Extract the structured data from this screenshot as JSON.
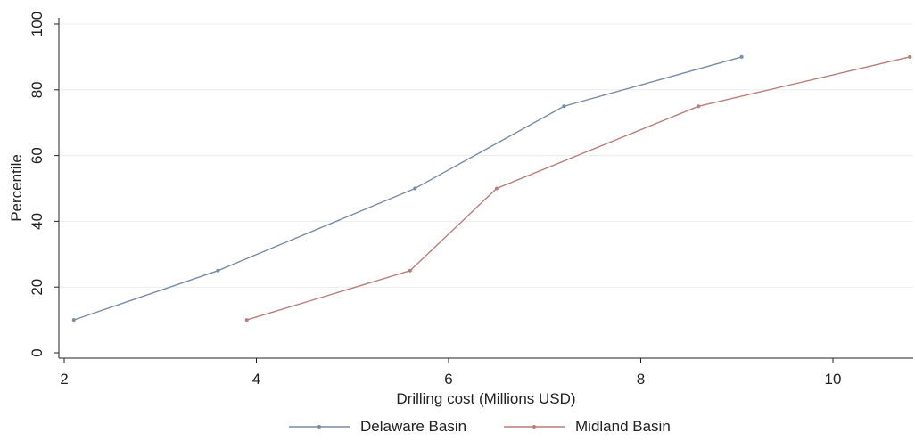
{
  "chart_data": {
    "type": "line",
    "title": "",
    "xlabel": "Drilling cost (Millions USD)",
    "ylabel": "Percentile",
    "xlim": [
      2,
      10.8
    ],
    "ylim": [
      0,
      100
    ],
    "x_ticks": [
      2,
      4,
      6,
      8,
      10
    ],
    "y_ticks": [
      0,
      20,
      40,
      60,
      80,
      100
    ],
    "grid": "horizontal",
    "legend_position": "bottom-center",
    "series": [
      {
        "name": "Delaware Basin",
        "color": "#7a8ba8",
        "points": [
          {
            "x": 2.1,
            "y": 10
          },
          {
            "x": 3.6,
            "y": 25
          },
          {
            "x": 5.65,
            "y": 50
          },
          {
            "x": 7.2,
            "y": 75
          },
          {
            "x": 9.05,
            "y": 90
          }
        ]
      },
      {
        "name": "Midland Basin",
        "color": "#b87f7a",
        "points": [
          {
            "x": 3.9,
            "y": 10
          },
          {
            "x": 5.6,
            "y": 25
          },
          {
            "x": 6.5,
            "y": 50
          },
          {
            "x": 8.6,
            "y": 75
          },
          {
            "x": 10.8,
            "y": 90
          }
        ]
      }
    ]
  }
}
